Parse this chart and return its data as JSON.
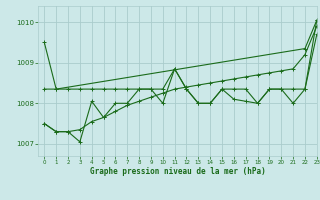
{
  "background_color": "#cce8e8",
  "grid_color": "#aacccc",
  "line_color": "#1a6b1a",
  "title": "Graphe pression niveau de la mer (hPa)",
  "xlim": [
    -0.5,
    23
  ],
  "ylim": [
    1006.7,
    1010.4
  ],
  "yticks": [
    1007,
    1008,
    1009,
    1010
  ],
  "xticks": [
    0,
    1,
    2,
    3,
    4,
    5,
    6,
    7,
    8,
    9,
    10,
    11,
    12,
    13,
    14,
    15,
    16,
    17,
    18,
    19,
    20,
    21,
    22,
    23
  ],
  "series": [
    [
      1009.5,
      1008.35,
      null,
      null,
      null,
      null,
      null,
      null,
      null,
      null,
      null,
      null,
      null,
      null,
      null,
      null,
      null,
      null,
      null,
      null,
      null,
      null,
      1009.35,
      1010.05
    ],
    [
      1008.35,
      1008.35,
      1008.35,
      1008.35,
      1008.35,
      1008.35,
      1008.35,
      1008.35,
      1008.35,
      1008.35,
      1008.35,
      1008.85,
      1008.35,
      1008.0,
      1008.0,
      1008.35,
      1008.35,
      1008.35,
      1008.0,
      1008.35,
      1008.35,
      1008.35,
      1008.35,
      1010.05
    ],
    [
      1007.5,
      1007.3,
      1007.3,
      1007.05,
      1008.05,
      1007.65,
      1008.0,
      1008.0,
      1008.35,
      1008.35,
      1008.0,
      1008.85,
      1008.35,
      1008.0,
      1008.0,
      1008.35,
      1008.1,
      1008.05,
      1008.0,
      1008.35,
      1008.35,
      1008.0,
      1008.35,
      1009.7
    ],
    [
      1007.5,
      1007.3,
      1007.3,
      1007.35,
      1007.55,
      1007.65,
      1007.8,
      1007.95,
      1008.05,
      1008.15,
      1008.25,
      1008.35,
      1008.4,
      1008.45,
      1008.5,
      1008.55,
      1008.6,
      1008.65,
      1008.7,
      1008.75,
      1008.8,
      1008.85,
      1009.2,
      1009.9
    ]
  ]
}
